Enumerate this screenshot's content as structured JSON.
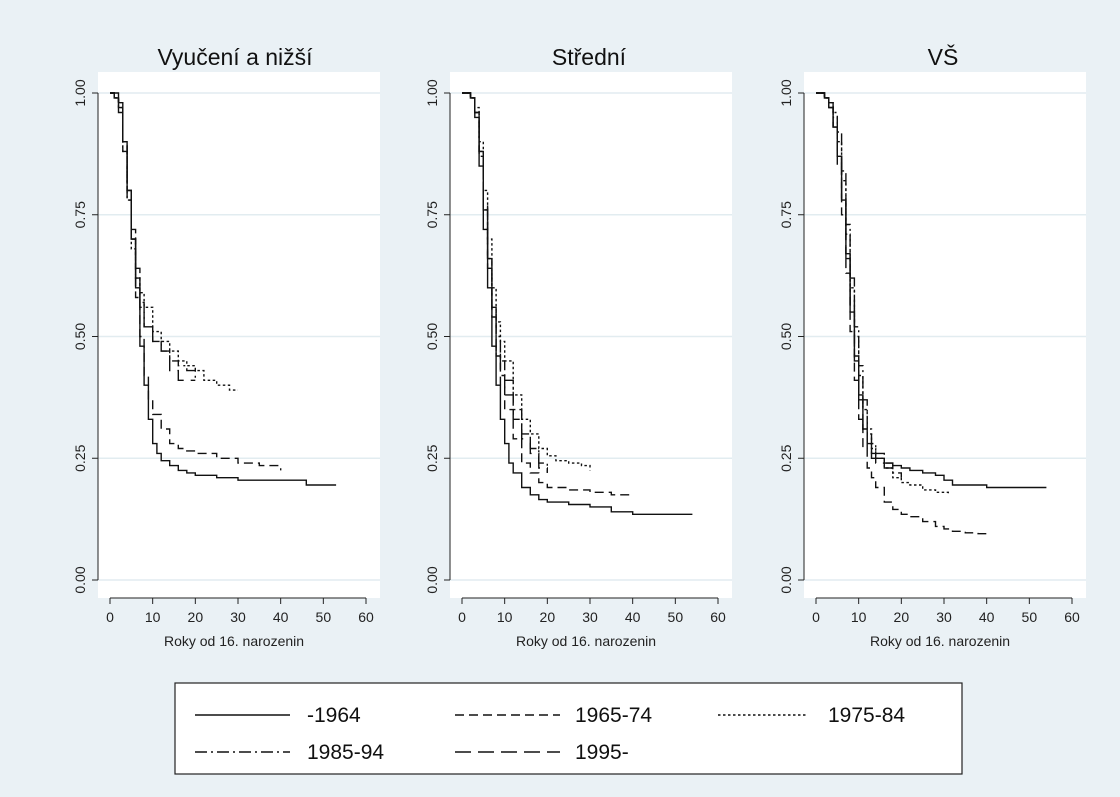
{
  "chart_data": [
    {
      "type": "line",
      "title": "Vyučení a nižší",
      "xlabel": "Roky od 16. narozenin",
      "ylabel": "",
      "xlim": [
        0,
        60
      ],
      "ylim": [
        0,
        1
      ],
      "x_ticks": [
        "0",
        "10",
        "20",
        "30",
        "40",
        "50",
        "60"
      ],
      "y_ticks": [
        "0.00",
        "0.25",
        "0.50",
        "0.75",
        "1.00"
      ],
      "grid": true,
      "series": [
        {
          "name": "-1964",
          "x": [
            0,
            1,
            2,
            3,
            4,
            5,
            6,
            7,
            8,
            9,
            10,
            11,
            12,
            14,
            16,
            18,
            20,
            25,
            30,
            35,
            40,
            44,
            46,
            48,
            50,
            53
          ],
          "y": [
            1.0,
            1.0,
            0.98,
            0.9,
            0.8,
            0.7,
            0.6,
            0.48,
            0.4,
            0.33,
            0.28,
            0.26,
            0.245,
            0.235,
            0.225,
            0.22,
            0.215,
            0.21,
            0.205,
            0.205,
            0.205,
            0.205,
            0.195,
            0.195,
            0.195,
            0.195
          ]
        },
        {
          "name": "1965-74",
          "x": [
            0,
            1,
            2,
            3,
            4,
            5,
            6,
            7,
            8,
            9,
            10,
            12,
            14,
            16,
            18,
            20,
            25,
            30,
            35,
            40
          ],
          "y": [
            1.0,
            0.99,
            0.97,
            0.9,
            0.8,
            0.7,
            0.58,
            0.5,
            0.42,
            0.37,
            0.34,
            0.31,
            0.28,
            0.27,
            0.265,
            0.26,
            0.25,
            0.24,
            0.235,
            0.225
          ]
        },
        {
          "name": "1975-84",
          "x": [
            0,
            1,
            2,
            3,
            4,
            5,
            6,
            7,
            8,
            10,
            12,
            14,
            16,
            18,
            20,
            22,
            25,
            28,
            30
          ],
          "y": [
            1.0,
            0.99,
            0.97,
            0.88,
            0.78,
            0.68,
            0.62,
            0.59,
            0.56,
            0.51,
            0.49,
            0.47,
            0.45,
            0.44,
            0.43,
            0.41,
            0.4,
            0.39,
            0.39
          ]
        },
        {
          "name": "1985-94",
          "x": [
            0,
            1,
            2,
            3,
            4,
            5,
            6,
            7,
            8,
            10,
            12,
            14,
            16,
            18,
            20
          ],
          "y": [
            1.0,
            0.99,
            0.96,
            0.88,
            0.78,
            0.72,
            0.64,
            0.57,
            0.52,
            0.49,
            0.47,
            0.45,
            0.44,
            0.43,
            0.41
          ]
        },
        {
          "name": "1995-",
          "x": [
            0,
            1,
            2,
            3,
            4,
            5,
            6,
            7,
            8,
            10,
            12,
            14,
            16,
            18,
            20
          ],
          "y": [
            1.0,
            0.99,
            0.97,
            0.9,
            0.8,
            0.7,
            0.62,
            0.56,
            0.52,
            0.49,
            0.47,
            0.43,
            0.41,
            0.41,
            0.41
          ]
        }
      ]
    },
    {
      "type": "line",
      "title": "Střední",
      "xlabel": "Roky od 16. narozenin",
      "ylabel": "",
      "xlim": [
        0,
        60
      ],
      "ylim": [
        0,
        1
      ],
      "x_ticks": [
        "0",
        "10",
        "20",
        "30",
        "40",
        "50",
        "60"
      ],
      "y_ticks": [
        "0.00",
        "0.25",
        "0.50",
        "0.75",
        "1.00"
      ],
      "grid": true,
      "series": [
        {
          "name": "-1964",
          "x": [
            0,
            1,
            2,
            3,
            4,
            5,
            6,
            7,
            8,
            9,
            10,
            11,
            12,
            14,
            16,
            18,
            20,
            25,
            30,
            35,
            40,
            45,
            50,
            54
          ],
          "y": [
            1.0,
            1.0,
            0.99,
            0.95,
            0.85,
            0.72,
            0.6,
            0.48,
            0.4,
            0.33,
            0.28,
            0.24,
            0.22,
            0.19,
            0.175,
            0.165,
            0.16,
            0.155,
            0.15,
            0.14,
            0.135,
            0.135,
            0.135,
            0.135
          ]
        },
        {
          "name": "1965-74",
          "x": [
            0,
            1,
            2,
            3,
            4,
            5,
            6,
            7,
            8,
            9,
            10,
            12,
            14,
            16,
            18,
            20,
            25,
            30,
            35,
            40
          ],
          "y": [
            1.0,
            1.0,
            0.99,
            0.96,
            0.88,
            0.76,
            0.64,
            0.54,
            0.46,
            0.4,
            0.35,
            0.29,
            0.24,
            0.22,
            0.2,
            0.19,
            0.185,
            0.18,
            0.175,
            0.175
          ]
        },
        {
          "name": "1975-84",
          "x": [
            0,
            1,
            2,
            3,
            4,
            5,
            6,
            7,
            8,
            9,
            10,
            12,
            14,
            16,
            18,
            20,
            22,
            25,
            28,
            30
          ],
          "y": [
            1.0,
            1.0,
            0.99,
            0.97,
            0.9,
            0.8,
            0.7,
            0.6,
            0.53,
            0.49,
            0.45,
            0.38,
            0.33,
            0.3,
            0.27,
            0.255,
            0.245,
            0.24,
            0.235,
            0.225
          ]
        },
        {
          "name": "1985-94",
          "x": [
            0,
            1,
            2,
            3,
            4,
            5,
            6,
            7,
            8,
            9,
            10,
            12,
            14,
            16,
            18,
            20
          ],
          "y": [
            1.0,
            1.0,
            0.99,
            0.96,
            0.87,
            0.76,
            0.66,
            0.56,
            0.5,
            0.45,
            0.41,
            0.35,
            0.3,
            0.27,
            0.24,
            0.22
          ]
        },
        {
          "name": "1995-",
          "x": [
            0,
            1,
            2,
            3,
            4,
            5,
            6,
            7,
            8,
            9,
            10,
            12,
            14,
            16,
            18,
            20
          ],
          "y": [
            1.0,
            1.0,
            0.99,
            0.96,
            0.88,
            0.77,
            0.66,
            0.55,
            0.47,
            0.42,
            0.38,
            0.33,
            0.29,
            0.26,
            0.23,
            0.22
          ]
        }
      ]
    },
    {
      "type": "line",
      "title": "VŠ",
      "xlabel": "Roky od 16. narozenin",
      "ylabel": "",
      "xlim": [
        0,
        60
      ],
      "ylim": [
        0,
        1
      ],
      "x_ticks": [
        "0",
        "10",
        "20",
        "30",
        "40",
        "50",
        "60"
      ],
      "y_ticks": [
        "0.00",
        "0.25",
        "0.50",
        "0.75",
        "1.00"
      ],
      "grid": true,
      "series": [
        {
          "name": "-1964",
          "x": [
            0,
            1,
            2,
            3,
            4,
            5,
            6,
            7,
            8,
            9,
            10,
            11,
            12,
            13,
            14,
            16,
            18,
            20,
            22,
            25,
            28,
            30,
            32,
            35,
            40,
            45,
            50,
            54
          ],
          "y": [
            1.0,
            1.0,
            0.99,
            0.97,
            0.93,
            0.87,
            0.78,
            0.66,
            0.55,
            0.45,
            0.37,
            0.31,
            0.28,
            0.26,
            0.25,
            0.24,
            0.235,
            0.23,
            0.225,
            0.22,
            0.215,
            0.205,
            0.195,
            0.195,
            0.19,
            0.19,
            0.19,
            0.19
          ]
        },
        {
          "name": "1965-74",
          "x": [
            0,
            1,
            2,
            3,
            4,
            5,
            6,
            7,
            8,
            9,
            10,
            11,
            12,
            13,
            14,
            16,
            18,
            20,
            22,
            25,
            28,
            30,
            32,
            35,
            38,
            41
          ],
          "y": [
            1.0,
            1.0,
            0.99,
            0.97,
            0.93,
            0.85,
            0.75,
            0.63,
            0.51,
            0.41,
            0.33,
            0.27,
            0.23,
            0.21,
            0.19,
            0.16,
            0.145,
            0.135,
            0.13,
            0.12,
            0.11,
            0.105,
            0.1,
            0.097,
            0.095,
            0.095
          ]
        },
        {
          "name": "1975-84",
          "x": [
            0,
            1,
            2,
            3,
            4,
            5,
            6,
            7,
            8,
            9,
            10,
            11,
            12,
            13,
            14,
            16,
            18,
            20,
            22,
            25,
            28,
            31
          ],
          "y": [
            1.0,
            1.0,
            0.99,
            0.98,
            0.95,
            0.9,
            0.82,
            0.71,
            0.6,
            0.5,
            0.42,
            0.35,
            0.3,
            0.27,
            0.25,
            0.23,
            0.21,
            0.2,
            0.195,
            0.185,
            0.18,
            0.175
          ]
        },
        {
          "name": "1985-94",
          "x": [
            0,
            1,
            2,
            3,
            4,
            5,
            6,
            7,
            8,
            9,
            10,
            11,
            12,
            13,
            14,
            16,
            18,
            20
          ],
          "y": [
            1.0,
            1.0,
            0.99,
            0.98,
            0.96,
            0.92,
            0.84,
            0.73,
            0.62,
            0.52,
            0.44,
            0.37,
            0.31,
            0.28,
            0.26,
            0.24,
            0.22,
            0.21
          ]
        },
        {
          "name": "1995-",
          "x": [
            0,
            1,
            2,
            3,
            4,
            5,
            6,
            7,
            8,
            9,
            10,
            11,
            12,
            13,
            14,
            16,
            18
          ],
          "y": [
            1.0,
            1.0,
            0.99,
            0.97,
            0.93,
            0.87,
            0.78,
            0.67,
            0.56,
            0.46,
            0.38,
            0.31,
            0.27,
            0.25,
            0.24,
            0.23,
            0.22
          ]
        }
      ]
    }
  ],
  "legend": {
    "items": [
      {
        "label": "-1964",
        "dash": "solid"
      },
      {
        "label": "1965-74",
        "dash": "dashed"
      },
      {
        "label": "1975-84",
        "dash": "dotted"
      },
      {
        "label": "1985-94",
        "dash": "dashdot"
      },
      {
        "label": "1995-",
        "dash": "longdash"
      }
    ]
  },
  "colors": {
    "background": "#eaf1f5",
    "panel": "#ffffff",
    "line": "#111111",
    "grid": "#e2ecf0"
  }
}
